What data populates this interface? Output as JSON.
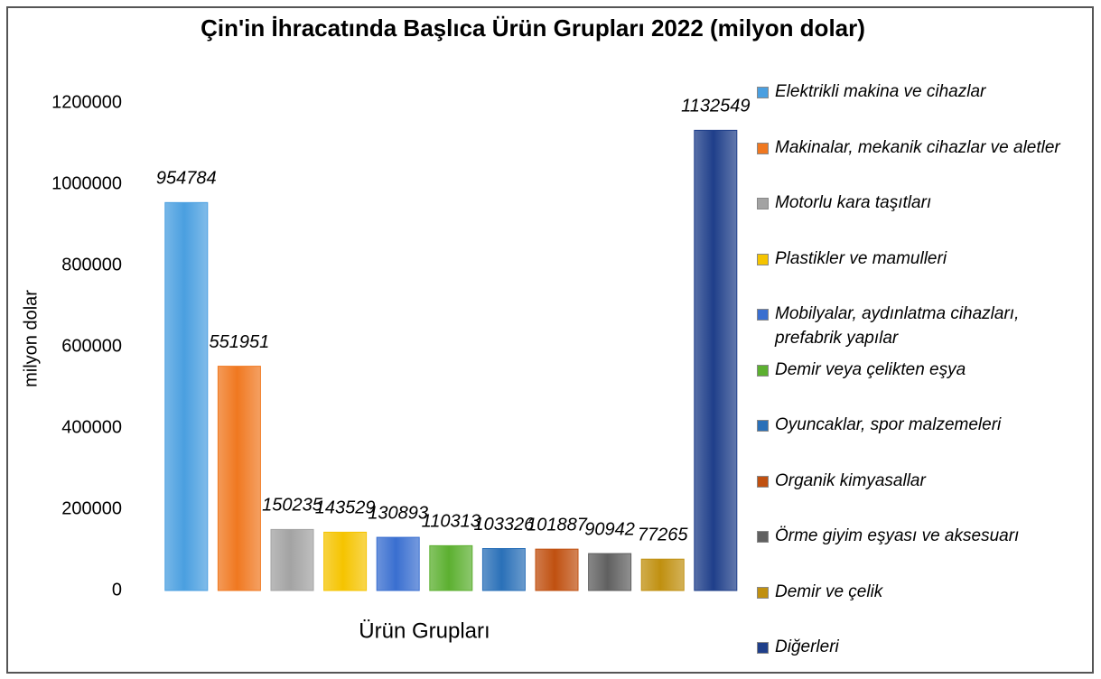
{
  "chart_data": {
    "type": "bar",
    "title": "Çin'in İhracatında Başlıca Ürün Grupları 2022 (milyon dolar)",
    "x_label": "Ürün Grupları",
    "y_label": "milyon dolar",
    "categories": [
      null
    ],
    "ylim": [
      0,
      1200000
    ],
    "yticks": [
      0,
      200000,
      400000,
      600000,
      800000,
      1000000,
      1200000
    ],
    "grid": false,
    "legend": "right",
    "series": [
      {
        "name": "Elektrikli makina ve cihazlar",
        "color": "#4a9fe0",
        "values": [
          954784
        ]
      },
      {
        "name": "Makinalar, mekanik cihazlar ve aletler",
        "color": "#f07820",
        "values": [
          551951
        ]
      },
      {
        "name": "Motorlu kara taşıtları",
        "color": "#a3a3a3",
        "values": [
          150235
        ]
      },
      {
        "name": "Plastikler ve mamulleri",
        "color": "#f5c400",
        "values": [
          143529
        ]
      },
      {
        "name": "Mobilyalar, aydınlatma cihazları, prefabrik yapılar",
        "color": "#3a6fd0",
        "values": [
          130893
        ]
      },
      {
        "name": "Demir veya çelikten eşya",
        "color": "#5cb030",
        "values": [
          110313
        ]
      },
      {
        "name": "Oyuncaklar, spor malzemeleri",
        "color": "#2a70b8",
        "values": [
          103326
        ]
      },
      {
        "name": "Organik kimyasallar",
        "color": "#c05010",
        "values": [
          101887
        ]
      },
      {
        "name": "Örme giyim eşyası ve aksesuarı",
        "color": "#606060",
        "values": [
          90942
        ]
      },
      {
        "name": "Demir ve çelik",
        "color": "#c09010",
        "values": [
          77265
        ]
      },
      {
        "name": "Diğerleri",
        "color": "#1f3f8a",
        "values": [
          1132549
        ]
      }
    ]
  }
}
